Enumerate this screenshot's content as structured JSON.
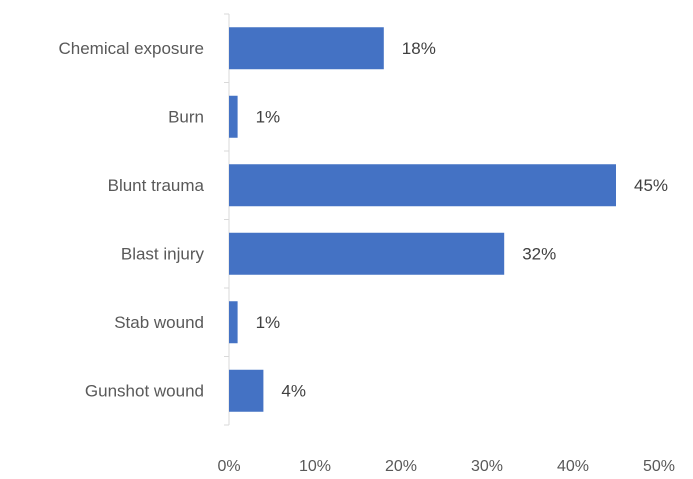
{
  "chart_data": {
    "type": "bar",
    "orientation": "horizontal",
    "categories": [
      "Chemical exposure",
      "Burn",
      "Blunt trauma",
      "Blast injury",
      "Stab wound",
      "Gunshot wound"
    ],
    "values": [
      18,
      1,
      45,
      32,
      1,
      4
    ],
    "data_labels": [
      "18%",
      "1%",
      "45%",
      "32%",
      "1%",
      "4%"
    ],
    "value_unit": "%",
    "xlim": [
      0,
      50
    ],
    "x_ticks": [
      0,
      10,
      20,
      30,
      40,
      50
    ],
    "x_tick_labels": [
      "0%",
      "10%",
      "20%",
      "30%",
      "40%",
      "50%"
    ],
    "title": "",
    "xlabel": "",
    "ylabel": "",
    "grid": false,
    "legend": "none",
    "colors": {
      "bar": "#4472C4",
      "axis": "#D9D9D9",
      "label_text": "#595959",
      "data_label_text": "#404040"
    }
  }
}
